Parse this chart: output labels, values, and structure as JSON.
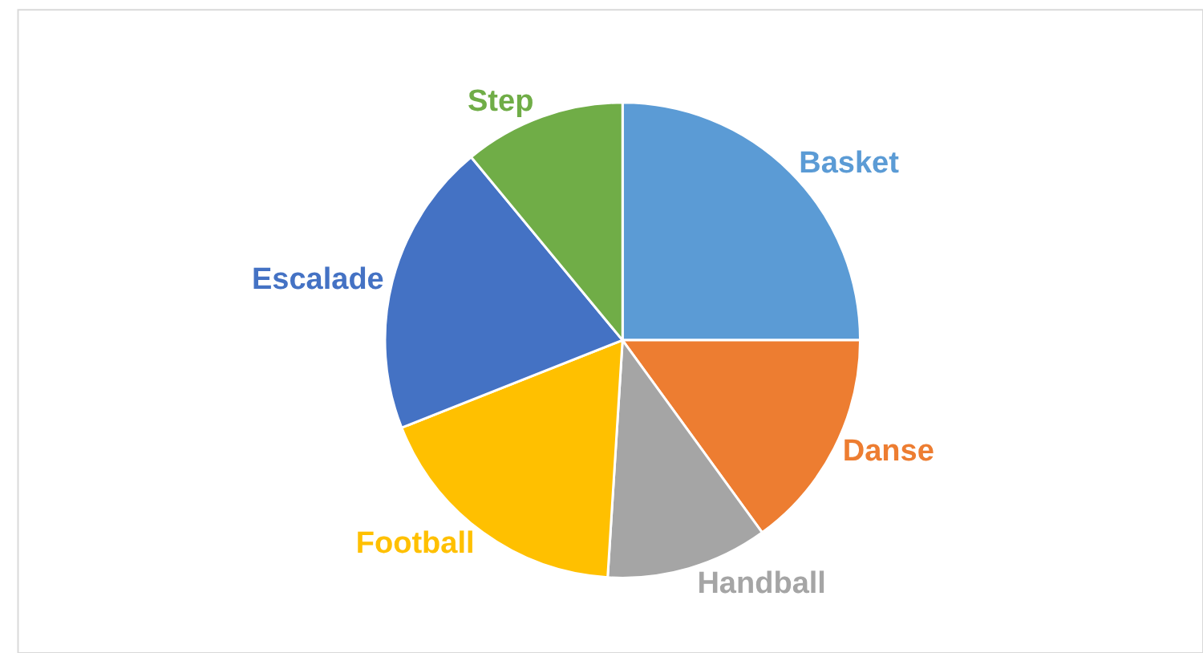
{
  "chart_data": {
    "type": "pie",
    "categories": [
      "Basket",
      "Danse",
      "Handball",
      "Football",
      "Escalade",
      "Step"
    ],
    "values": [
      25,
      15,
      11,
      18,
      20,
      11
    ],
    "colors": [
      "#5b9bd5",
      "#ed7d31",
      "#a5a5a5",
      "#ffc000",
      "#4472c4",
      "#70ad47"
    ],
    "legend": false
  }
}
